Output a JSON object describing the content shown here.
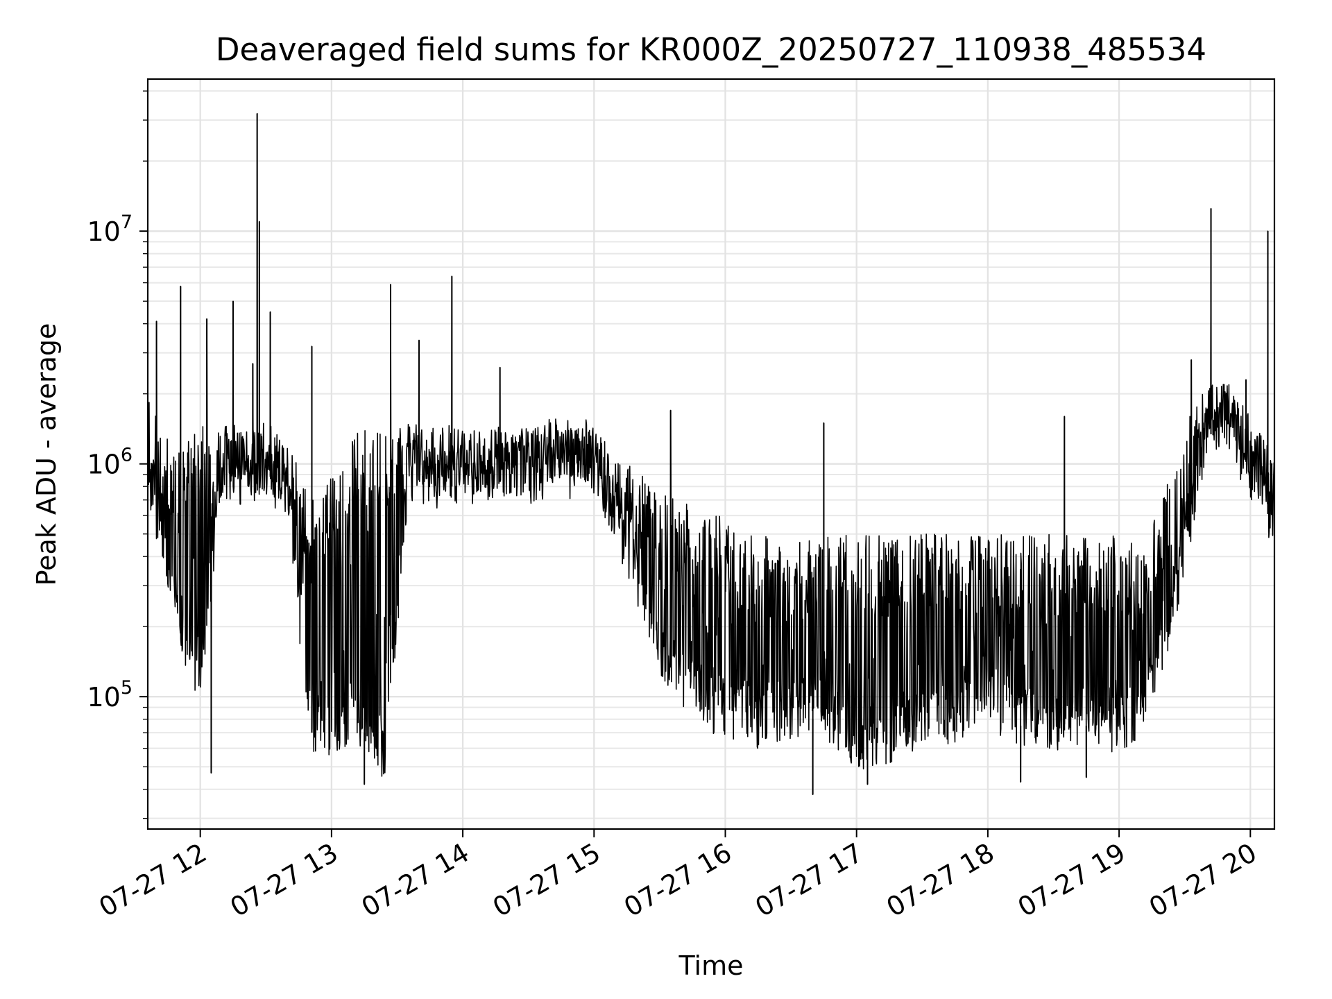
{
  "chart_data": {
    "type": "line",
    "title": "Deaveraged field sums for KR000Z_20250727_110938_485534",
    "xlabel": "Time",
    "ylabel": "Peak ADU - average",
    "x_ticks": [
      {
        "time": "2025-07-27T12:00",
        "label": "07-27 12"
      },
      {
        "time": "2025-07-27T13:00",
        "label": "07-27 13"
      },
      {
        "time": "2025-07-27T14:00",
        "label": "07-27 14"
      },
      {
        "time": "2025-07-27T15:00",
        "label": "07-27 15"
      },
      {
        "time": "2025-07-27T16:00",
        "label": "07-27 16"
      },
      {
        "time": "2025-07-27T17:00",
        "label": "07-27 17"
      },
      {
        "time": "2025-07-27T18:00",
        "label": "07-27 18"
      },
      {
        "time": "2025-07-27T19:00",
        "label": "07-27 19"
      },
      {
        "time": "2025-07-27T20:00",
        "label": "07-27 20"
      }
    ],
    "y_ticks": [
      {
        "value": 100000,
        "base": "10",
        "exp": "5"
      },
      {
        "value": 1000000,
        "base": "10",
        "exp": "6"
      },
      {
        "value": 10000000,
        "base": "10",
        "exp": "7"
      }
    ],
    "xlim": [
      "2025-07-27T11:36",
      "2025-07-27T20:11"
    ],
    "ylim": [
      27000,
      45000000
    ],
    "yscale": "log",
    "grid": true,
    "line_color": "#000000",
    "series": [
      {
        "x": [
          "2025-07-27T11:36",
          "2025-07-27T11:45",
          "2025-07-27T11:52",
          "2025-07-27T12:00",
          "2025-07-27T12:10",
          "2025-07-27T12:20",
          "2025-07-27T12:30",
          "2025-07-27T12:40",
          "2025-07-27T12:50",
          "2025-07-27T13:00",
          "2025-07-27T13:10",
          "2025-07-27T13:20",
          "2025-07-27T13:25",
          "2025-07-27T13:35",
          "2025-07-27T13:45",
          "2025-07-27T14:00",
          "2025-07-27T14:15",
          "2025-07-27T14:30",
          "2025-07-27T14:45",
          "2025-07-27T15:00",
          "2025-07-27T15:15",
          "2025-07-27T15:30",
          "2025-07-27T15:45",
          "2025-07-27T16:00",
          "2025-07-27T16:15",
          "2025-07-27T16:30",
          "2025-07-27T16:45",
          "2025-07-27T17:00",
          "2025-07-27T17:15",
          "2025-07-27T17:30",
          "2025-07-27T17:45",
          "2025-07-27T18:00",
          "2025-07-27T18:15",
          "2025-07-27T18:30",
          "2025-07-27T18:45",
          "2025-07-27T19:00",
          "2025-07-27T19:10",
          "2025-07-27T19:20",
          "2025-07-27T19:30",
          "2025-07-27T19:40",
          "2025-07-27T19:50",
          "2025-07-27T20:00",
          "2025-07-27T20:11"
        ],
        "baseline": [
          900000,
          350000,
          170000,
          120000,
          900000,
          900000,
          900000,
          800000,
          70000,
          70000,
          80000,
          60000,
          55000,
          900000,
          800000,
          800000,
          900000,
          900000,
          1100000,
          1000000,
          400000,
          150000,
          100000,
          80000,
          75000,
          80000,
          80000,
          60000,
          65000,
          70000,
          80000,
          90000,
          75000,
          70000,
          75000,
          70000,
          85000,
          150000,
          400000,
          1300000,
          1500000,
          900000,
          500000
        ],
        "envelope": [
          1900000,
          1300000,
          1300000,
          1500000,
          1500000,
          1500000,
          1500000,
          1300000,
          700000,
          900000,
          1400000,
          1400000,
          1400000,
          1500000,
          1500000,
          1500000,
          1500000,
          1500000,
          1500000,
          1400000,
          1000000,
          800000,
          700000,
          600000,
          500000,
          450000,
          500000,
          500000,
          500000,
          500000,
          500000,
          500000,
          500000,
          500000,
          500000,
          500000,
          450000,
          700000,
          1500000,
          2200000,
          2200000,
          1600000,
          1200000
        ],
        "peaks": [
          {
            "x": "2025-07-27T11:40",
            "y": 4100000
          },
          {
            "x": "2025-07-27T11:51",
            "y": 5800000
          },
          {
            "x": "2025-07-27T12:03",
            "y": 4200000
          },
          {
            "x": "2025-07-27T12:15",
            "y": 5000000
          },
          {
            "x": "2025-07-27T12:24",
            "y": 2700000
          },
          {
            "x": "2025-07-27T12:26",
            "y": 32000000
          },
          {
            "x": "2025-07-27T12:27",
            "y": 11000000
          },
          {
            "x": "2025-07-27T12:32",
            "y": 4500000
          },
          {
            "x": "2025-07-27T12:51",
            "y": 3200000
          },
          {
            "x": "2025-07-27T13:27",
            "y": 5900000
          },
          {
            "x": "2025-07-27T13:40",
            "y": 3400000
          },
          {
            "x": "2025-07-27T13:55",
            "y": 6400000
          },
          {
            "x": "2025-07-27T14:17",
            "y": 2600000
          },
          {
            "x": "2025-07-27T15:35",
            "y": 1700000
          },
          {
            "x": "2025-07-27T16:45",
            "y": 1500000
          },
          {
            "x": "2025-07-27T18:35",
            "y": 1600000
          },
          {
            "x": "2025-07-27T19:33",
            "y": 2800000
          },
          {
            "x": "2025-07-27T19:42",
            "y": 12500000
          },
          {
            "x": "2025-07-27T19:58",
            "y": 2300000
          },
          {
            "x": "2025-07-27T20:08",
            "y": 10000000
          }
        ],
        "troughs": [
          {
            "x": "2025-07-27T12:05",
            "y": 47000
          },
          {
            "x": "2025-07-27T13:15",
            "y": 42000
          },
          {
            "x": "2025-07-27T16:40",
            "y": 38000
          },
          {
            "x": "2025-07-27T17:05",
            "y": 42000
          },
          {
            "x": "2025-07-27T18:15",
            "y": 43000
          },
          {
            "x": "2025-07-27T18:45",
            "y": 45000
          }
        ]
      }
    ]
  }
}
